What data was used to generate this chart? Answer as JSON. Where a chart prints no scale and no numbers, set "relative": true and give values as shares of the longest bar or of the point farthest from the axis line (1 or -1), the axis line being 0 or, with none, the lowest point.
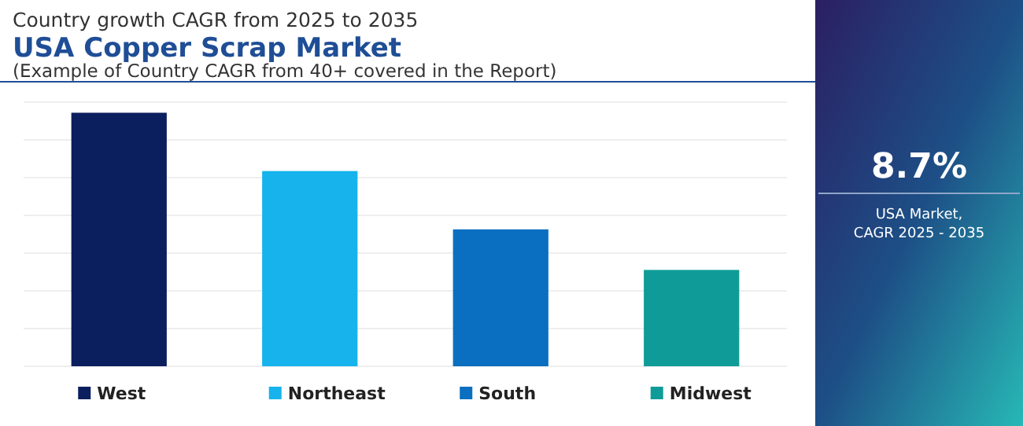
{
  "chart_data": {
    "type": "bar",
    "title": "USA Copper Scrap Market",
    "subtitle": "Country growth CAGR from 2025 to 2035",
    "annotations": [
      "(Example of Country CAGR from 40+ covered in the Report)",
      "8.7%",
      "USA Market,\nCAGR 2025 - 2035"
    ],
    "categories": [
      "West",
      "Northeast",
      "South",
      "Midwest"
    ],
    "values": [
      1,
      0.77,
      0.54,
      0.38
    ],
    "colors": [
      "#0b1f5e",
      "#16b3ec",
      "#0a6fc0",
      "#0f9c98"
    ],
    "relative": true,
    "grid": true
  }
}
